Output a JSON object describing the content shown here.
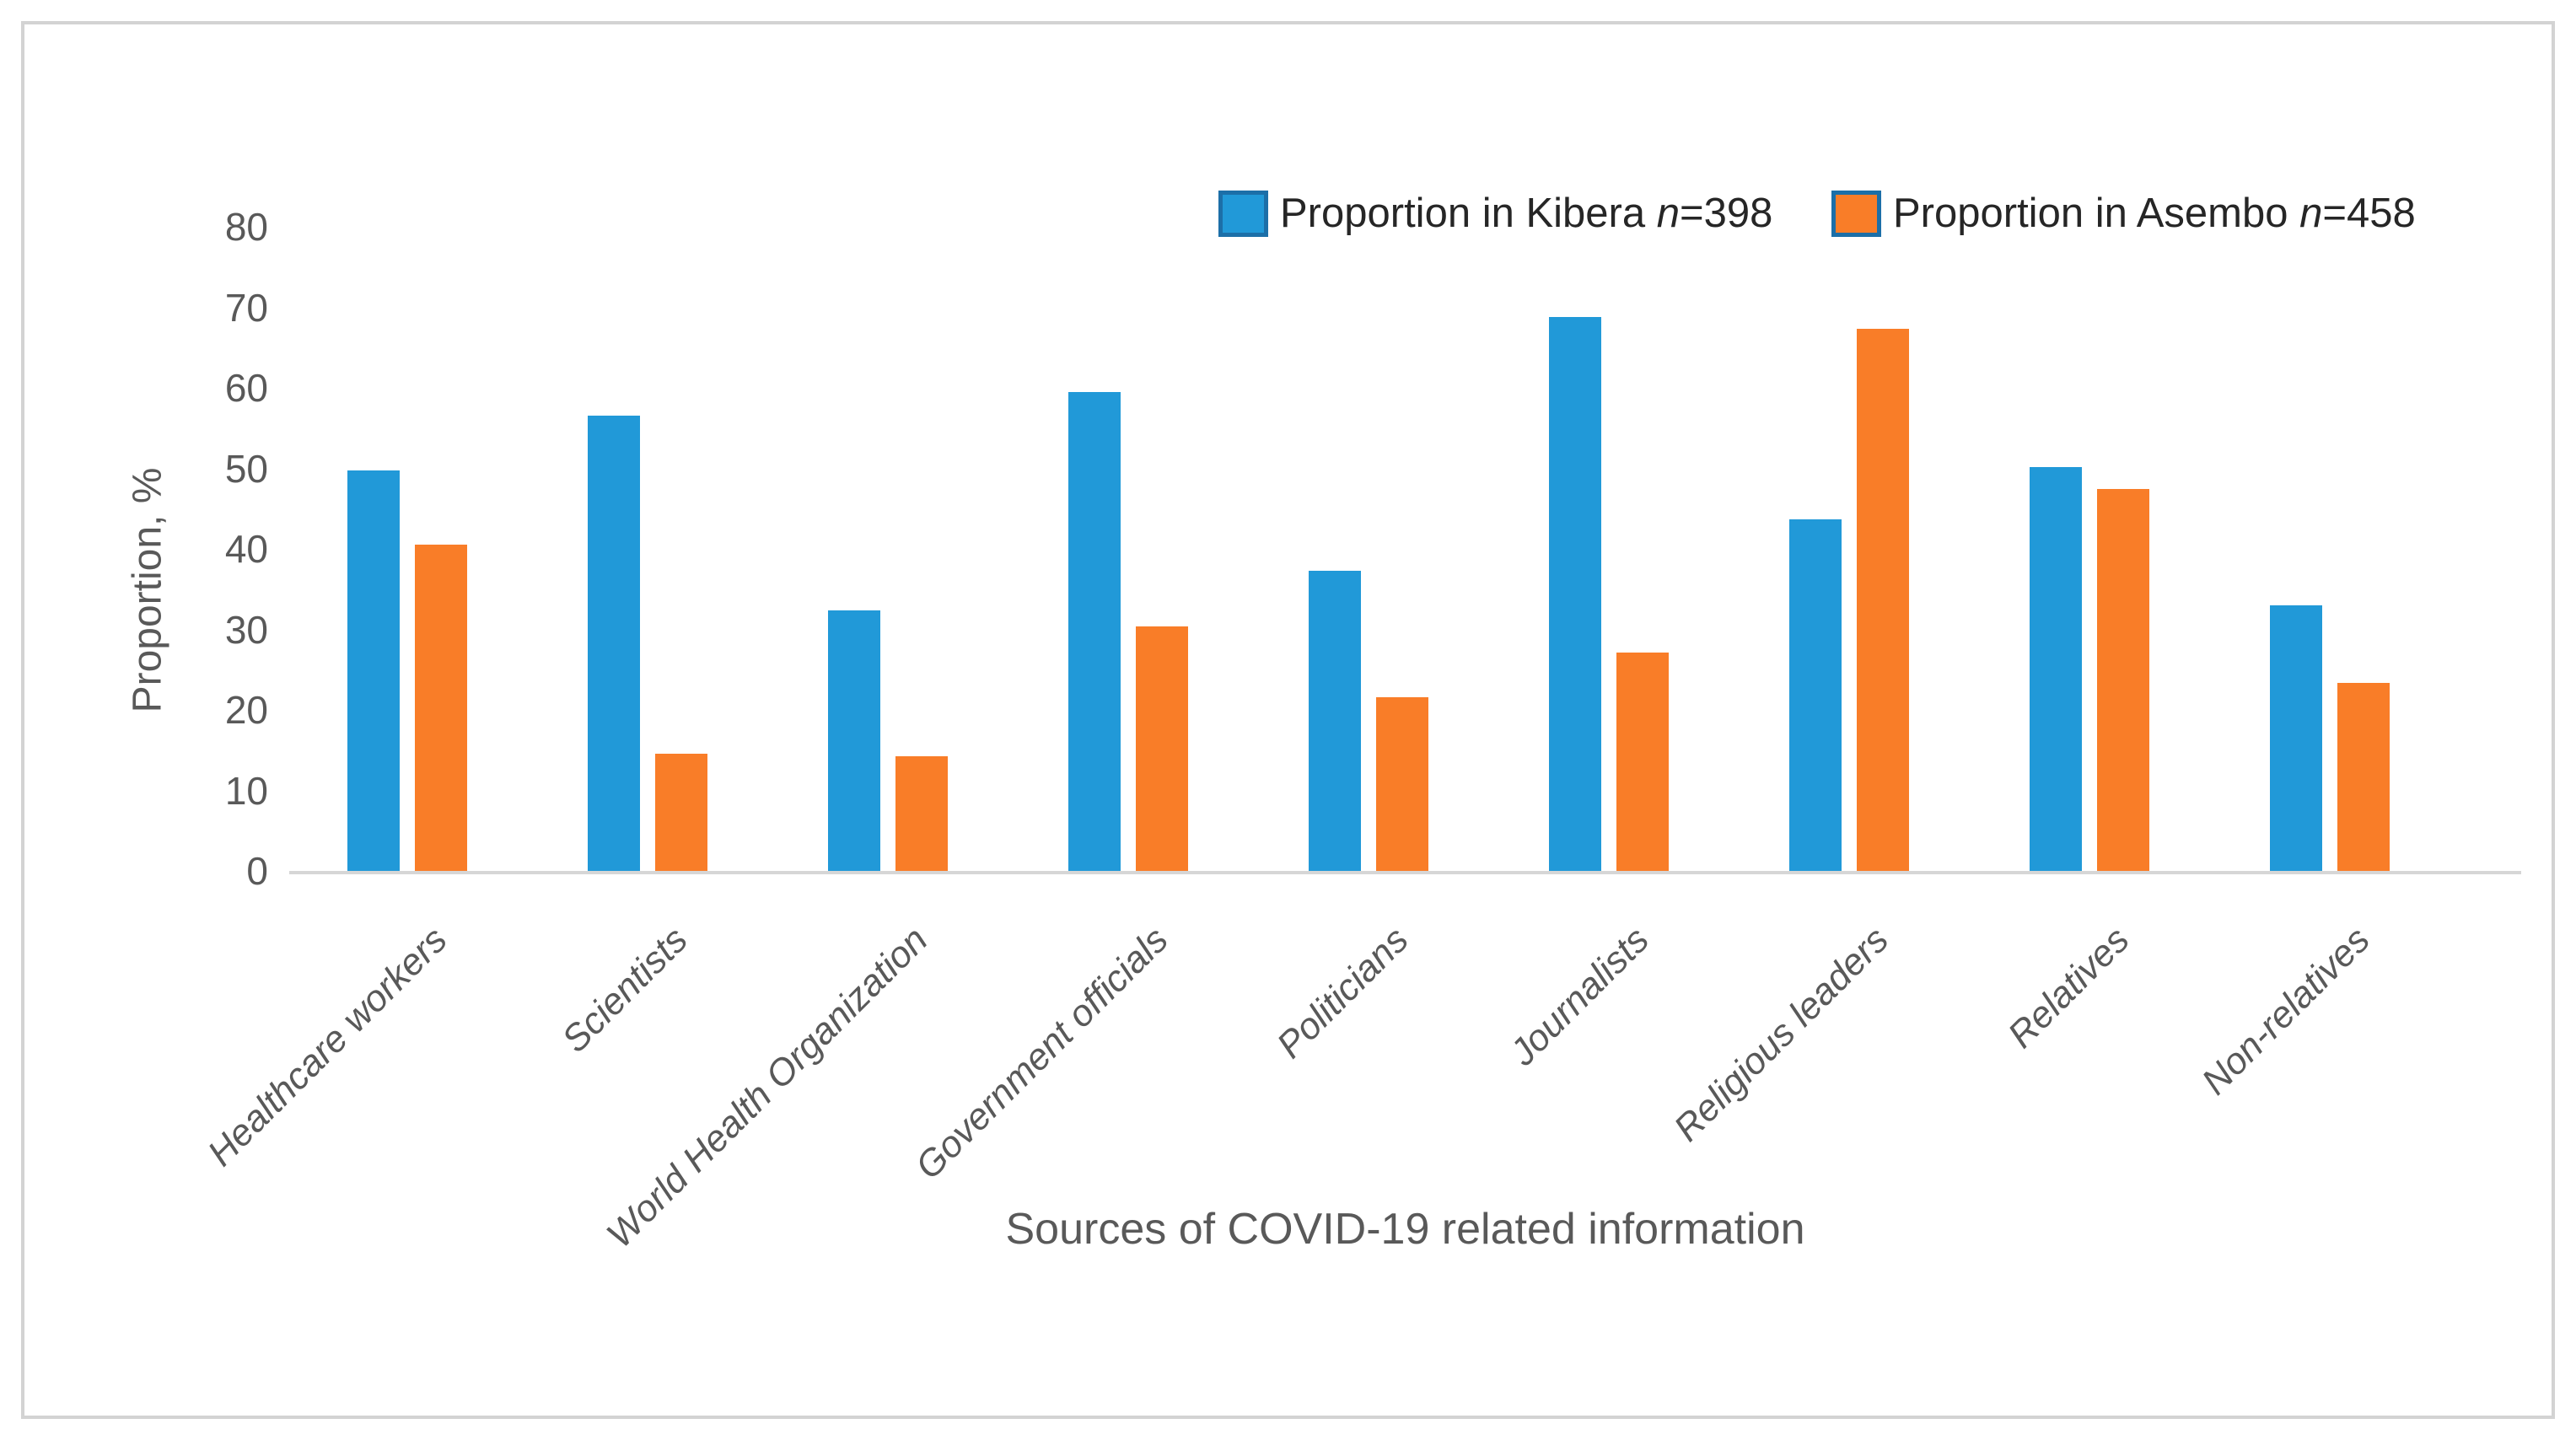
{
  "figure": {
    "legend": [
      {
        "series": "kibera",
        "prefix": "Proportion in Kibera ",
        "n": "n",
        "suffix": "=398"
      },
      {
        "series": "asembo",
        "prefix": "Proportion in Asembo ",
        "n": "n",
        "suffix": "=458"
      }
    ],
    "colors": {
      "kibera": "#2199d8",
      "asembo": "#f97d28",
      "legend_swatch_border": "#1c6fa8",
      "axis_line": "#d6d6d6",
      "frame_border": "#d3d3d3",
      "axis_text": "#595959",
      "legend_text": "#262626"
    }
  },
  "chart_data": {
    "type": "bar",
    "title": "",
    "xlabel": "Sources of COVID-19 related information",
    "ylabel": "Proportion, %",
    "ylim": [
      0,
      80
    ],
    "yticks": [
      0,
      10,
      20,
      30,
      40,
      50,
      60,
      70,
      80
    ],
    "grid": false,
    "legend_position": "top-right",
    "categories": [
      "Healthcare workers",
      "Scientists",
      "World Health Organization",
      "Government officials",
      "Politicians",
      "Journalists",
      "Religious leaders",
      "Relatives",
      "Non-relatives"
    ],
    "series": [
      {
        "key": "kibera",
        "name": "Proportion in Kibera n=398",
        "values": [
          49.7,
          56.5,
          32.4,
          59.5,
          37.3,
          68.8,
          43.7,
          50.2,
          33.0
        ]
      },
      {
        "key": "asembo",
        "name": "Proportion in Asembo n=458",
        "values": [
          40.5,
          14.6,
          14.2,
          30.4,
          21.6,
          27.1,
          67.3,
          47.4,
          23.4
        ]
      }
    ]
  }
}
